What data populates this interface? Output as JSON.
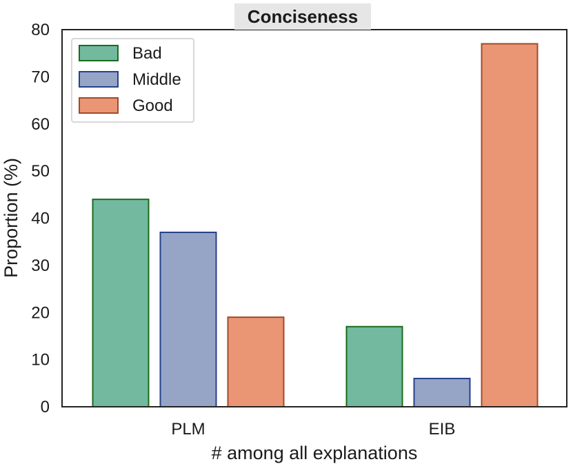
{
  "chart_data": {
    "type": "bar",
    "title": "Conciseness",
    "xlabel": "# among all explanations",
    "ylabel": "Proportion (%)",
    "ylim": [
      0,
      80
    ],
    "yticks": [
      0,
      10,
      20,
      30,
      40,
      50,
      60,
      70,
      80
    ],
    "categories": [
      "PLM",
      "EIB"
    ],
    "series": [
      {
        "name": "Bad",
        "values": [
          44,
          17
        ],
        "fill": "#72b9a0",
        "stroke": "#1a6b1a"
      },
      {
        "name": "Middle",
        "values": [
          37,
          6
        ],
        "fill": "#96a4c6",
        "stroke": "#26418a"
      },
      {
        "name": "Good",
        "values": [
          19,
          77
        ],
        "fill": "#ea9674",
        "stroke": "#a04a2a"
      }
    ],
    "legend_position": "top-left",
    "grid": false
  }
}
